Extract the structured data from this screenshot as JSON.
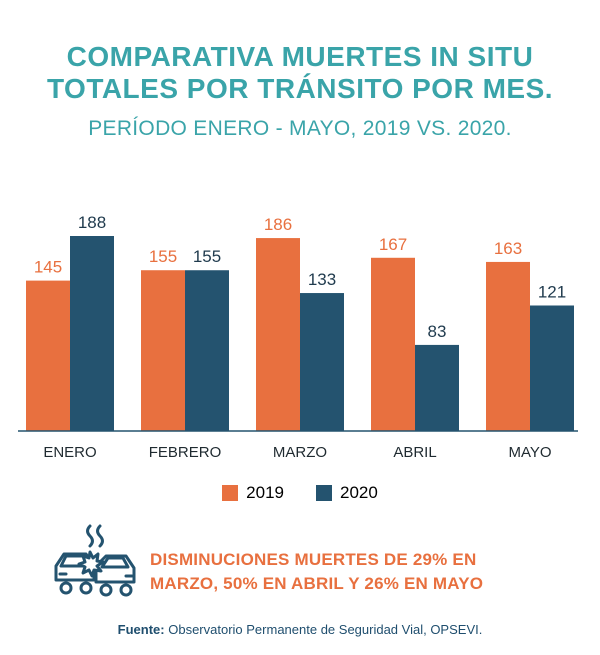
{
  "header": {
    "title_line1": "COMPARATIVA MUERTES IN SITU",
    "title_line2": "TOTALES POR TRÁNSITO POR MES.",
    "subtitle": "PERÍODO ENERO - MAYO, 2019 VS. 2020."
  },
  "colors": {
    "series_2019": "#e8703f",
    "series_2020": "#24536f",
    "title": "#3aa4a9",
    "note": "#e8703f",
    "icon": "#24536f"
  },
  "chart_data": {
    "type": "bar",
    "categories": [
      "ENERO",
      "FEBRERO",
      "MARZO",
      "ABRIL",
      "MAYO"
    ],
    "series": [
      {
        "name": "2019",
        "values": [
          145,
          155,
          186,
          167,
          163
        ]
      },
      {
        "name": "2020",
        "values": [
          188,
          155,
          133,
          83,
          121
        ]
      }
    ],
    "ylim": [
      0,
      188
    ],
    "grid": false,
    "legend_position": "bottom"
  },
  "legend": {
    "items": [
      "2019",
      "2020"
    ]
  },
  "note": {
    "icon": "car-crash-icon",
    "line1": "DISMINUCIONES MUERTES DE 29% EN",
    "line2": "MARZO, 50% EN ABRIL Y 26% EN MAYO"
  },
  "source": {
    "label": "Fuente:",
    "text": "Observatorio Permanente de Seguridad Vial, OPSEVI."
  }
}
